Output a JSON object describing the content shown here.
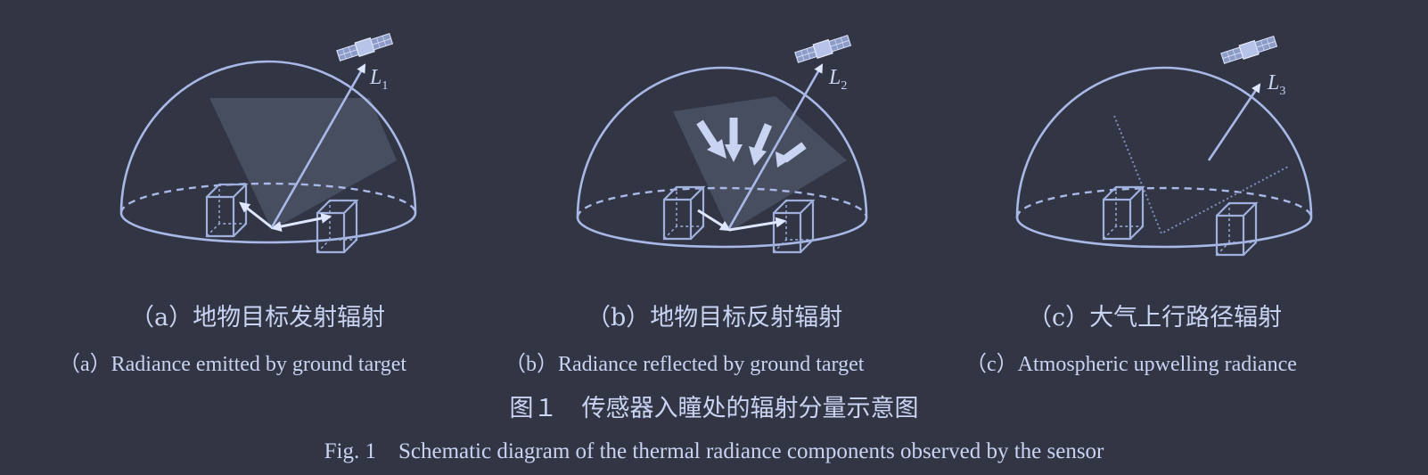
{
  "panels": [
    {
      "caption_zh": "（a）地物目标发射辐射",
      "caption_en": "（a）Radiance emitted by ground target",
      "label": "L",
      "label_sub": "1"
    },
    {
      "caption_zh": "（b）地物目标反射辐射",
      "caption_en": "（b）Radiance reflected by ground target",
      "label": "L",
      "label_sub": "2"
    },
    {
      "caption_zh": "（c）大气上行路径辐射",
      "caption_en": "（c）Atmospheric upwelling radiance",
      "label": "L",
      "label_sub": "3"
    }
  ],
  "figure": {
    "title_zh": "图１　传感器入瞳处的辐射分量示意图",
    "title_en": "Fig. 1　Schematic diagram of the thermal radiance components observed by the sensor"
  },
  "colors": {
    "background": "#323644",
    "line": "#a9b8e6",
    "text": "#c9d3f2"
  }
}
